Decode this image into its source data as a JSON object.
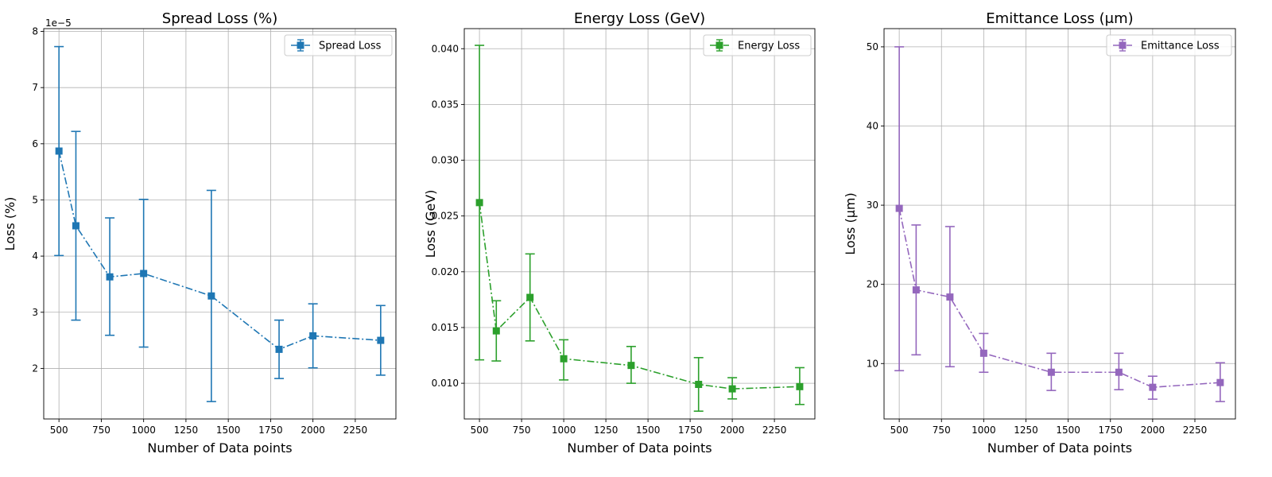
{
  "chart_data": [
    {
      "type": "line",
      "title": "Spread Loss (%)",
      "xlabel": "Number of Data points",
      "ylabel": "Loss (%)",
      "y_offset_label": "1e−5",
      "xlim": [
        410,
        2490
      ],
      "ylim": [
        1.1,
        8.05
      ],
      "xticks": [
        500,
        750,
        1000,
        1250,
        1500,
        1750,
        2000,
        2250
      ],
      "xtick_labels": [
        "500",
        "750",
        "1000",
        "1250",
        "1500",
        "1750",
        "2000",
        "2250"
      ],
      "yticks": [
        2,
        3,
        4,
        5,
        6,
        7,
        8
      ],
      "ytick_labels": [
        "2",
        "3",
        "4",
        "5",
        "6",
        "7",
        "8"
      ],
      "grid": true,
      "legend_position": "top-right",
      "color": "#1f77b4",
      "marker": "square",
      "line_style": "dash-dot",
      "series": [
        {
          "name": "Spread Loss",
          "x": [
            500,
            600,
            800,
            1000,
            1400,
            1800,
            2000,
            2400
          ],
          "y": [
            5.87,
            4.54,
            3.63,
            3.69,
            3.29,
            2.34,
            2.58,
            2.5
          ],
          "y_lower": [
            4.01,
            2.86,
            2.59,
            2.38,
            1.41,
            1.82,
            2.01,
            1.88
          ],
          "y_upper": [
            7.73,
            6.22,
            4.68,
            5.01,
            5.17,
            2.86,
            3.15,
            3.12
          ]
        }
      ]
    },
    {
      "type": "line",
      "title": "Energy Loss (GeV)",
      "xlabel": "Number of Data points",
      "ylabel": "Loss (GeV)",
      "y_offset_label": "",
      "xlim": [
        410,
        2490
      ],
      "ylim": [
        0.0068,
        0.0418
      ],
      "xticks": [
        500,
        750,
        1000,
        1250,
        1500,
        1750,
        2000,
        2250
      ],
      "xtick_labels": [
        "500",
        "750",
        "1000",
        "1250",
        "1500",
        "1750",
        "2000",
        "2250"
      ],
      "yticks": [
        0.01,
        0.015,
        0.02,
        0.025,
        0.03,
        0.035,
        0.04
      ],
      "ytick_labels": [
        "0.010",
        "0.015",
        "0.020",
        "0.025",
        "0.030",
        "0.035",
        "0.040"
      ],
      "grid": true,
      "legend_position": "top-right",
      "color": "#2ca02c",
      "marker": "square",
      "line_style": "dash-dot",
      "series": [
        {
          "name": "Energy Loss",
          "x": [
            500,
            600,
            800,
            1000,
            1400,
            1800,
            2000,
            2400
          ],
          "y": [
            0.0262,
            0.0147,
            0.0177,
            0.0122,
            0.0116,
            0.0099,
            0.0095,
            0.0097
          ],
          "y_lower": [
            0.0121,
            0.012,
            0.0138,
            0.0103,
            0.01,
            0.0075,
            0.0086,
            0.0081
          ],
          "y_upper": [
            0.0403,
            0.0174,
            0.0216,
            0.0139,
            0.0133,
            0.0123,
            0.0105,
            0.0114
          ]
        }
      ]
    },
    {
      "type": "line",
      "title": "Emittance Loss (μm)",
      "xlabel": "Number of Data points",
      "ylabel": "Loss (μm)",
      "y_offset_label": "",
      "xlim": [
        410,
        2490
      ],
      "ylim": [
        3.0,
        52.3
      ],
      "xticks": [
        500,
        750,
        1000,
        1250,
        1500,
        1750,
        2000,
        2250
      ],
      "xtick_labels": [
        "500",
        "750",
        "1000",
        "1250",
        "1500",
        "1750",
        "2000",
        "2250"
      ],
      "yticks": [
        10,
        20,
        30,
        40,
        50
      ],
      "ytick_labels": [
        "10",
        "20",
        "30",
        "40",
        "50"
      ],
      "grid": true,
      "legend_position": "top-right",
      "color": "#9467bd",
      "marker": "square",
      "line_style": "dash-dot",
      "series": [
        {
          "name": "Emittance Loss",
          "x": [
            500,
            600,
            800,
            1000,
            1400,
            1800,
            2000,
            2400
          ],
          "y": [
            29.6,
            19.3,
            18.4,
            11.3,
            8.9,
            8.9,
            7.0,
            7.6
          ],
          "y_lower": [
            9.1,
            11.1,
            9.6,
            8.9,
            6.6,
            6.7,
            5.5,
            5.2
          ],
          "y_upper": [
            50.0,
            27.5,
            27.3,
            13.8,
            11.3,
            11.3,
            8.4,
            10.1
          ]
        }
      ]
    }
  ]
}
